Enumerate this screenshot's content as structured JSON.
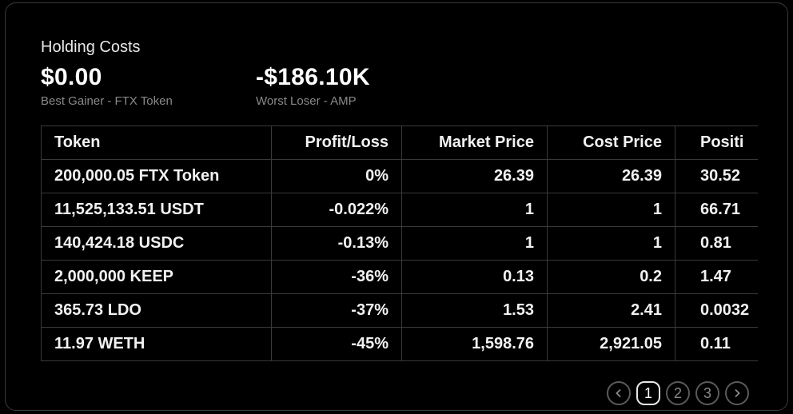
{
  "header": {
    "title": "Holding Costs"
  },
  "metrics": [
    {
      "value": "$0.00",
      "label": "Best Gainer - FTX Token"
    },
    {
      "value": "-$186.10K",
      "label": "Worst Loser - AMP"
    }
  ],
  "table": {
    "columns": [
      "Token",
      "Profit/Loss",
      "Market Price",
      "Cost Price",
      "Positi"
    ],
    "rows": [
      [
        "200,000.05 FTX Token",
        "0%",
        "26.39",
        "26.39",
        "30.52"
      ],
      [
        "11,525,133.51 USDT",
        "-0.022%",
        "1",
        "1",
        "66.71"
      ],
      [
        "140,424.18 USDC",
        "-0.13%",
        "1",
        "1",
        "0.81"
      ],
      [
        "2,000,000 KEEP",
        "-36%",
        "0.13",
        "0.2",
        "1.47"
      ],
      [
        "365.73 LDO",
        "-37%",
        "1.53",
        "2.41",
        "0.0032"
      ],
      [
        "11.97 WETH",
        "-45%",
        "1,598.76",
        "2,921.05",
        "0.11"
      ]
    ]
  },
  "pagination": {
    "pages": [
      "1",
      "2",
      "3"
    ],
    "current": "1",
    "prev_icon": "chevron-left-icon",
    "next_icon": "chevron-right-icon"
  }
}
